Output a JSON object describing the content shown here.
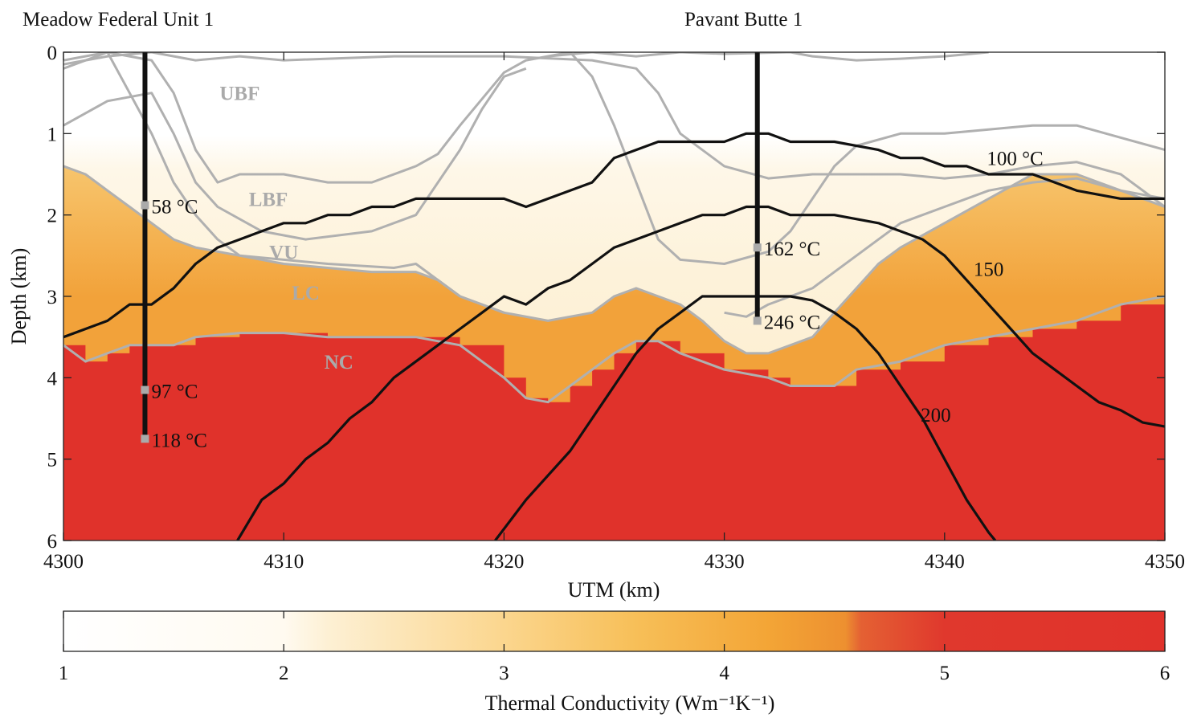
{
  "wells": [
    {
      "name": "Meadow Federal Unit 1",
      "x": 4303.7,
      "td": 4.75,
      "temps": [
        {
          "label": "58 °C",
          "depth": 1.88
        },
        {
          "label": "97 °C",
          "depth": 4.15
        },
        {
          "label": "118 °C",
          "depth": 4.75
        }
      ]
    },
    {
      "name": "Pavant Butte 1",
      "x": 4331.5,
      "td": 3.3,
      "temps": [
        {
          "label": "162 °C",
          "depth": 2.4
        },
        {
          "label": "246 °C",
          "depth": 3.3
        }
      ]
    }
  ],
  "layer_labels": [
    {
      "text": "UBF",
      "x": 4308.0,
      "depth": 0.5
    },
    {
      "text": "LBF",
      "x": 4309.3,
      "depth": 1.8
    },
    {
      "text": "VU",
      "x": 4310.0,
      "depth": 2.45
    },
    {
      "text": "LC",
      "x": 4311.0,
      "depth": 2.95
    },
    {
      "text": "NC",
      "x": 4312.5,
      "depth": 3.8
    }
  ],
  "chart_data": {
    "type": "heatmap",
    "title": "",
    "xlabel": "UTM (km)",
    "ylabel": "Depth (km)",
    "xlim": [
      4300,
      4350
    ],
    "ylim": [
      0,
      6
    ],
    "y_inverted": true,
    "xticks": [
      "4300",
      "4310",
      "4320",
      "4330",
      "4340",
      "4350"
    ],
    "yticks": [
      "0",
      "1",
      "2",
      "3",
      "4",
      "5",
      "6"
    ],
    "zones": [
      {
        "name": "UBF",
        "conductivity": 1.2
      },
      {
        "name": "LBF",
        "conductivity": 2.3
      },
      {
        "name": "VU",
        "conductivity": 2.8
      },
      {
        "name": "LC",
        "conductivity": 4.1
      },
      {
        "name": "NC",
        "conductivity": 5.8
      }
    ],
    "boundaries": {
      "lc_top": [
        [
          4300,
          1.4
        ],
        [
          4301,
          1.5
        ],
        [
          4302,
          1.7
        ],
        [
          4303,
          1.9
        ],
        [
          4304,
          2.1
        ],
        [
          4305,
          2.3
        ],
        [
          4306,
          2.4
        ],
        [
          4308,
          2.5
        ],
        [
          4310,
          2.6
        ],
        [
          4312,
          2.65
        ],
        [
          4314,
          2.7
        ],
        [
          4316,
          2.7
        ],
        [
          4317,
          2.8
        ],
        [
          4318,
          3.0
        ],
        [
          4319,
          3.1
        ],
        [
          4320,
          3.2
        ],
        [
          4322,
          3.3
        ],
        [
          4324,
          3.2
        ],
        [
          4325,
          3.0
        ],
        [
          4326,
          2.9
        ],
        [
          4327,
          3.0
        ],
        [
          4328,
          3.1
        ],
        [
          4329,
          3.3
        ],
        [
          4330,
          3.55
        ],
        [
          4331,
          3.7
        ],
        [
          4332,
          3.7
        ],
        [
          4333,
          3.6
        ],
        [
          4334,
          3.5
        ],
        [
          4335,
          3.2
        ],
        [
          4336,
          2.9
        ],
        [
          4337,
          2.6
        ],
        [
          4338,
          2.4
        ],
        [
          4340,
          2.1
        ],
        [
          4342,
          1.8
        ],
        [
          4344,
          1.5
        ],
        [
          4346,
          1.5
        ],
        [
          4348,
          1.7
        ],
        [
          4350,
          1.9
        ]
      ],
      "nc_top": [
        [
          4300,
          3.6
        ],
        [
          4301,
          3.8
        ],
        [
          4302,
          3.7
        ],
        [
          4303,
          3.6
        ],
        [
          4305,
          3.6
        ],
        [
          4306,
          3.5
        ],
        [
          4308,
          3.45
        ],
        [
          4310,
          3.45
        ],
        [
          4312,
          3.5
        ],
        [
          4314,
          3.5
        ],
        [
          4316,
          3.5
        ],
        [
          4318,
          3.6
        ],
        [
          4320,
          4.0
        ],
        [
          4321,
          4.25
        ],
        [
          4322,
          4.3
        ],
        [
          4323,
          4.1
        ],
        [
          4324,
          3.9
        ],
        [
          4325,
          3.7
        ],
        [
          4326,
          3.55
        ],
        [
          4327,
          3.55
        ],
        [
          4328,
          3.7
        ],
        [
          4330,
          3.9
        ],
        [
          4332,
          4.0
        ],
        [
          4333,
          4.1
        ],
        [
          4335,
          4.1
        ],
        [
          4336,
          3.9
        ],
        [
          4338,
          3.8
        ],
        [
          4340,
          3.6
        ],
        [
          4342,
          3.5
        ],
        [
          4344,
          3.4
        ],
        [
          4346,
          3.3
        ],
        [
          4348,
          3.1
        ],
        [
          4350,
          3.0
        ]
      ],
      "vu_line": [
        [
          4300,
          0.2
        ],
        [
          4302,
          0.0
        ],
        [
          4303,
          0.5
        ],
        [
          4304,
          1.0
        ],
        [
          4305,
          1.6
        ],
        [
          4306,
          2.0
        ],
        [
          4307,
          2.3
        ],
        [
          4308,
          2.5
        ],
        [
          4310,
          2.55
        ],
        [
          4312,
          2.6
        ],
        [
          4315,
          2.65
        ],
        [
          4316,
          2.6
        ],
        [
          4318,
          3.0
        ],
        [
          4320,
          3.2
        ]
      ],
      "ubf_base": [
        [
          4300,
          0.1
        ],
        [
          4302,
          0.0
        ],
        [
          4303,
          0.05
        ],
        [
          4304,
          0.1
        ],
        [
          4305,
          0.5
        ],
        [
          4306,
          1.2
        ],
        [
          4307,
          1.6
        ],
        [
          4308,
          1.5
        ],
        [
          4310,
          1.5
        ],
        [
          4312,
          1.6
        ],
        [
          4314,
          1.6
        ],
        [
          4316,
          1.4
        ],
        [
          4317,
          1.25
        ],
        [
          4318,
          0.9
        ],
        [
          4320,
          0.25
        ],
        [
          4321,
          0.1
        ],
        [
          4323,
          0.0
        ],
        [
          4324,
          0.3
        ],
        [
          4325,
          0.9
        ],
        [
          4326,
          1.6
        ],
        [
          4327,
          2.3
        ],
        [
          4328,
          2.55
        ],
        [
          4330,
          2.6
        ],
        [
          4332,
          2.45
        ],
        [
          4333,
          2.2
        ],
        [
          4334,
          1.8
        ],
        [
          4335,
          1.4
        ],
        [
          4336,
          1.15
        ],
        [
          4338,
          1.0
        ],
        [
          4340,
          1.0
        ],
        [
          4342,
          0.95
        ],
        [
          4344,
          0.9
        ],
        [
          4346,
          0.9
        ],
        [
          4348,
          1.05
        ],
        [
          4350,
          1.2
        ]
      ],
      "upper_bf": [
        [
          4300,
          0.15
        ],
        [
          4302,
          0.05
        ],
        [
          4304,
          0.0
        ],
        [
          4306,
          0.1
        ],
        [
          4308,
          0.05
        ],
        [
          4310,
          0.1
        ],
        [
          4315,
          0.05
        ],
        [
          4320,
          0.05
        ],
        [
          4324,
          0.1
        ],
        [
          4326,
          0.2
        ],
        [
          4327,
          0.5
        ],
        [
          4328,
          1.0
        ],
        [
          4330,
          1.4
        ],
        [
          4332,
          1.55
        ],
        [
          4334,
          1.5
        ],
        [
          4336,
          1.5
        ],
        [
          4338,
          1.5
        ],
        [
          4340,
          1.55
        ],
        [
          4342,
          1.5
        ],
        [
          4344,
          1.4
        ],
        [
          4346,
          1.35
        ],
        [
          4348,
          1.5
        ],
        [
          4350,
          1.9
        ]
      ],
      "upper_tr": [
        [
          4322,
          0.05
        ],
        [
          4324,
          0.0
        ],
        [
          4326,
          0.05
        ],
        [
          4328,
          0.0
        ],
        [
          4330,
          0.02
        ],
        [
          4333,
          0.0
        ],
        [
          4334,
          0.05
        ],
        [
          4336,
          0.1
        ],
        [
          4338,
          0.08
        ],
        [
          4340,
          0.05
        ],
        [
          4342,
          0.0
        ]
      ],
      "lbf_mid": [
        [
          4300,
          0.9
        ],
        [
          4302,
          0.6
        ],
        [
          4304,
          0.5
        ],
        [
          4305,
          1.0
        ],
        [
          4306,
          1.6
        ],
        [
          4307,
          1.9
        ],
        [
          4309,
          2.2
        ],
        [
          4311,
          2.3
        ],
        [
          4314,
          2.2
        ],
        [
          4316,
          2.0
        ],
        [
          4318,
          1.2
        ],
        [
          4319,
          0.7
        ],
        [
          4320,
          0.3
        ],
        [
          4321,
          0.2
        ]
      ],
      "right_cross": [
        [
          4330,
          3.2
        ],
        [
          4331,
          3.25
        ],
        [
          4332,
          3.1
        ],
        [
          4334,
          2.9
        ],
        [
          4335,
          2.7
        ],
        [
          4336,
          2.5
        ],
        [
          4337,
          2.3
        ],
        [
          4338,
          2.1
        ],
        [
          4340,
          1.9
        ],
        [
          4342,
          1.7
        ],
        [
          4344,
          1.6
        ],
        [
          4346,
          1.55
        ],
        [
          4348,
          1.7
        ],
        [
          4350,
          1.8
        ]
      ]
    },
    "series": [
      {
        "name": "100 °C",
        "points": [
          [
            4300,
            3.5
          ],
          [
            4302,
            3.3
          ],
          [
            4303,
            3.1
          ],
          [
            4304,
            3.1
          ],
          [
            4305,
            2.9
          ],
          [
            4306,
            2.6
          ],
          [
            4307,
            2.4
          ],
          [
            4308,
            2.3
          ],
          [
            4309,
            2.2
          ],
          [
            4310,
            2.1
          ],
          [
            4311,
            2.1
          ],
          [
            4312,
            2.0
          ],
          [
            4313,
            2.0
          ],
          [
            4314,
            1.9
          ],
          [
            4315,
            1.9
          ],
          [
            4316,
            1.8
          ],
          [
            4318,
            1.8
          ],
          [
            4320,
            1.8
          ],
          [
            4321,
            1.9
          ],
          [
            4322,
            1.8
          ],
          [
            4324,
            1.6
          ],
          [
            4325,
            1.3
          ],
          [
            4326,
            1.2
          ],
          [
            4327,
            1.1
          ],
          [
            4328,
            1.1
          ],
          [
            4330,
            1.1
          ],
          [
            4331,
            1.0
          ],
          [
            4332,
            1.0
          ],
          [
            4333,
            1.1
          ],
          [
            4335,
            1.1
          ],
          [
            4337,
            1.2
          ],
          [
            4338,
            1.3
          ],
          [
            4339,
            1.3
          ],
          [
            4340,
            1.4
          ],
          [
            4341,
            1.4
          ],
          [
            4342,
            1.5
          ],
          [
            4343,
            1.5
          ],
          [
            4344,
            1.5
          ],
          [
            4345,
            1.6
          ],
          [
            4346,
            1.7
          ],
          [
            4348,
            1.8
          ],
          [
            4350,
            1.8
          ]
        ]
      },
      {
        "name": "150",
        "points": [
          [
            4307.9,
            6.0
          ],
          [
            4309,
            5.5
          ],
          [
            4310,
            5.3
          ],
          [
            4311,
            5.0
          ],
          [
            4312,
            4.8
          ],
          [
            4313,
            4.5
          ],
          [
            4314,
            4.3
          ],
          [
            4315,
            4.0
          ],
          [
            4316,
            3.8
          ],
          [
            4317,
            3.6
          ],
          [
            4318,
            3.4
          ],
          [
            4319,
            3.2
          ],
          [
            4320,
            3.0
          ],
          [
            4321,
            3.1
          ],
          [
            4322,
            2.9
          ],
          [
            4323,
            2.8
          ],
          [
            4324,
            2.6
          ],
          [
            4325,
            2.4
          ],
          [
            4326,
            2.3
          ],
          [
            4328,
            2.1
          ],
          [
            4329,
            2.0
          ],
          [
            4330,
            2.0
          ],
          [
            4331,
            1.9
          ],
          [
            4332,
            1.9
          ],
          [
            4333,
            2.0
          ],
          [
            4335,
            2.0
          ],
          [
            4337,
            2.1
          ],
          [
            4339,
            2.3
          ],
          [
            4340,
            2.5
          ],
          [
            4341,
            2.8
          ],
          [
            4342,
            3.1
          ],
          [
            4343,
            3.4
          ],
          [
            4344,
            3.7
          ],
          [
            4345,
            3.9
          ],
          [
            4346,
            4.1
          ],
          [
            4347,
            4.3
          ],
          [
            4348,
            4.4
          ],
          [
            4349,
            4.55
          ],
          [
            4350,
            4.6
          ]
        ]
      },
      {
        "name": "200",
        "points": [
          [
            4319.6,
            6.0
          ],
          [
            4321,
            5.5
          ],
          [
            4322,
            5.2
          ],
          [
            4323,
            4.9
          ],
          [
            4324,
            4.5
          ],
          [
            4325,
            4.1
          ],
          [
            4326,
            3.7
          ],
          [
            4327,
            3.4
          ],
          [
            4328,
            3.2
          ],
          [
            4329,
            3.0
          ],
          [
            4331,
            3.0
          ],
          [
            4333,
            3.0
          ],
          [
            4334,
            3.05
          ],
          [
            4335,
            3.2
          ],
          [
            4336,
            3.4
          ],
          [
            4337,
            3.7
          ],
          [
            4338,
            4.1
          ],
          [
            4339,
            4.5
          ],
          [
            4340,
            5.0
          ],
          [
            4341,
            5.5
          ],
          [
            4342,
            5.9
          ],
          [
            4342.3,
            6.0
          ]
        ]
      }
    ],
    "contour_labels": [
      {
        "text": "100 °C",
        "x": 4343.2,
        "depth": 1.3
      },
      {
        "text": "150",
        "x": 4342.0,
        "depth": 2.66
      },
      {
        "text": "200",
        "x": 4339.6,
        "depth": 4.45
      }
    ],
    "colorbar": {
      "label": "Thermal Conductivity (Wm⁻¹K⁻¹)",
      "range": [
        1,
        6
      ],
      "ticks": [
        "1",
        "2",
        "3",
        "4",
        "5",
        "6"
      ],
      "stops": [
        {
          "v": 1.0,
          "color": "#ffffff"
        },
        {
          "v": 2.0,
          "color": "#fffaf0"
        },
        {
          "v": 2.2,
          "color": "#fdf0d4"
        },
        {
          "v": 3.0,
          "color": "#fbd68e"
        },
        {
          "v": 3.6,
          "color": "#f7bf58"
        },
        {
          "v": 4.2,
          "color": "#f3a536"
        },
        {
          "v": 4.55,
          "color": "#ed9030"
        },
        {
          "v": 4.62,
          "color": "#e46133"
        },
        {
          "v": 5.0,
          "color": "#e0382d"
        },
        {
          "v": 6.0,
          "color": "#e0322b"
        }
      ]
    },
    "colors": {
      "ubf": "#ffffff",
      "lbf": "#fdf2da",
      "vu": "#fcebc6",
      "lc": "#f2a23a",
      "lc_light": "#f7c56d",
      "nc": "#e0322b",
      "boundary": "#b0b0b0",
      "layer_label": "#aaaaaa",
      "contour": "#111111"
    }
  }
}
